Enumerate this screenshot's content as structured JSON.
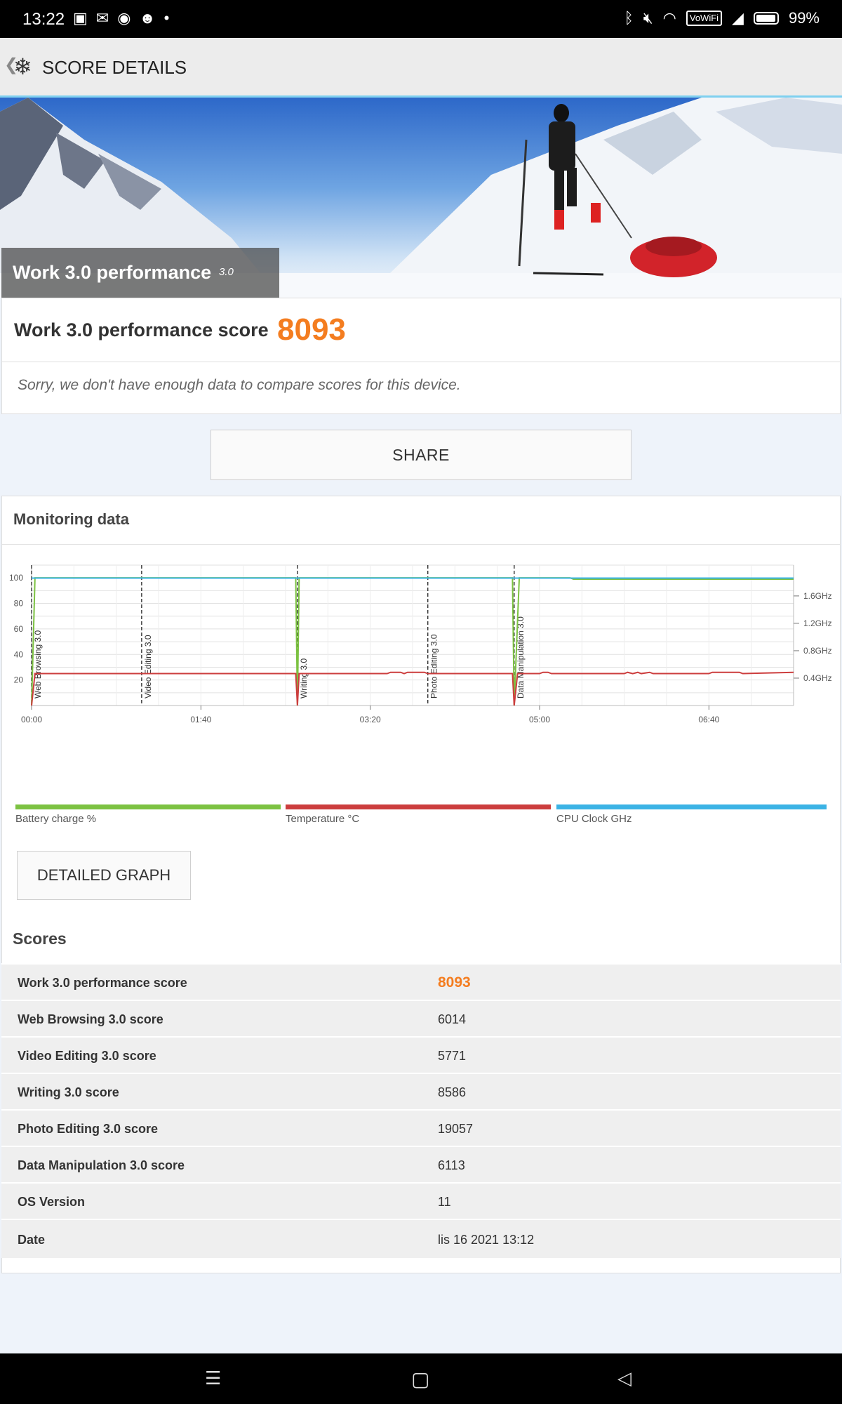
{
  "status_bar": {
    "time": "13:22",
    "battery": "99%",
    "network_badge": "VoWiFi",
    "left_icons": [
      "notification-icon",
      "mail-icon",
      "cast-icon",
      "reddit-icon",
      "dot-icon"
    ],
    "right_icons": [
      "bluetooth-icon",
      "mute-icon",
      "wifi-icon",
      "signal-icon",
      "battery-icon"
    ]
  },
  "app_bar": {
    "title": "SCORE DETAILS",
    "back_icon": "chevron-left-icon",
    "logo_icon": "snowflake-logo-icon"
  },
  "hero": {
    "title": "Work 3.0 performance",
    "version": "3.0"
  },
  "score_card": {
    "label": "Work 3.0 performance score",
    "value": "8093",
    "note": "Sorry, we don't have enough data to compare scores for this device."
  },
  "share_button": "SHARE",
  "monitoring": {
    "title": "Monitoring data",
    "legend": [
      {
        "label": "Battery charge %",
        "color": "#7cc242"
      },
      {
        "label": "Temperature °C",
        "color": "#cc3d3d"
      },
      {
        "label": "CPU Clock GHz",
        "color": "#3bb3e5"
      }
    ],
    "detailed_graph_button": "DETAILED GRAPH"
  },
  "chart_data": {
    "type": "line",
    "x_ticks": [
      "00:00",
      "01:40",
      "03:20",
      "05:00",
      "06:40"
    ],
    "x_range_seconds": [
      0,
      450
    ],
    "left_axis": {
      "ticks": [
        "20",
        "40",
        "60",
        "80",
        "100"
      ],
      "range": [
        0,
        110
      ]
    },
    "right_axis": {
      "ticks": [
        "0.4GHz",
        "0.8GHz",
        "1.2GHz",
        "1.6GHz"
      ],
      "range_ghz": [
        0,
        2.05
      ]
    },
    "markers": [
      {
        "label": "Web Browsing 3.0",
        "t": 0
      },
      {
        "label": "Video Editing 3.0",
        "t": 65
      },
      {
        "label": "Writing 3.0",
        "t": 157
      },
      {
        "label": "Photo Editing 3.0",
        "t": 234
      },
      {
        "label": "Data Manipulation 3.0",
        "t": 285
      }
    ],
    "series": [
      {
        "name": "Battery charge %",
        "color": "#7cc242",
        "points": [
          [
            0,
            0
          ],
          [
            2,
            100
          ],
          [
            156,
            100
          ],
          [
            157,
            0
          ],
          [
            158,
            100
          ],
          [
            284,
            100
          ],
          [
            285,
            0
          ],
          [
            288,
            100
          ],
          [
            318,
            100
          ],
          [
            320,
            99
          ],
          [
            450,
            99
          ]
        ]
      },
      {
        "name": "Temperature °C",
        "color": "#cc3d3d",
        "points": [
          [
            0,
            0
          ],
          [
            2,
            25
          ],
          [
            156,
            25
          ],
          [
            157,
            0
          ],
          [
            158,
            25
          ],
          [
            210,
            25
          ],
          [
            212,
            26
          ],
          [
            218,
            26
          ],
          [
            220,
            25
          ],
          [
            222,
            26
          ],
          [
            232,
            26
          ],
          [
            234,
            25
          ],
          [
            284,
            25
          ],
          [
            285,
            0
          ],
          [
            287,
            25
          ],
          [
            300,
            25
          ],
          [
            302,
            26
          ],
          [
            305,
            26
          ],
          [
            307,
            25
          ],
          [
            350,
            25
          ],
          [
            352,
            26
          ],
          [
            355,
            25
          ],
          [
            358,
            26
          ],
          [
            360,
            25
          ],
          [
            365,
            26
          ],
          [
            367,
            25
          ],
          [
            400,
            25
          ],
          [
            402,
            26
          ],
          [
            418,
            26
          ],
          [
            420,
            25
          ],
          [
            450,
            26
          ]
        ]
      },
      {
        "name": "CPU Clock GHz",
        "color": "#3bb3e5",
        "points": [
          [
            0,
            1.86
          ],
          [
            450,
            1.86
          ]
        ]
      }
    ]
  },
  "scores": {
    "title": "Scores",
    "rows": [
      {
        "label": "Work 3.0 performance score",
        "value": "8093"
      },
      {
        "label": "Web Browsing 3.0 score",
        "value": "6014"
      },
      {
        "label": "Video Editing 3.0 score",
        "value": "5771"
      },
      {
        "label": "Writing 3.0 score",
        "value": "8586"
      },
      {
        "label": "Photo Editing 3.0 score",
        "value": "19057"
      },
      {
        "label": "Data Manipulation 3.0 score",
        "value": "6113"
      },
      {
        "label": "OS Version",
        "value": "11"
      },
      {
        "label": "Date",
        "value": "lis 16 2021 13:12"
      }
    ]
  },
  "nav_bar": {
    "icons": [
      "menu-icon",
      "home-icon",
      "back-icon"
    ]
  }
}
